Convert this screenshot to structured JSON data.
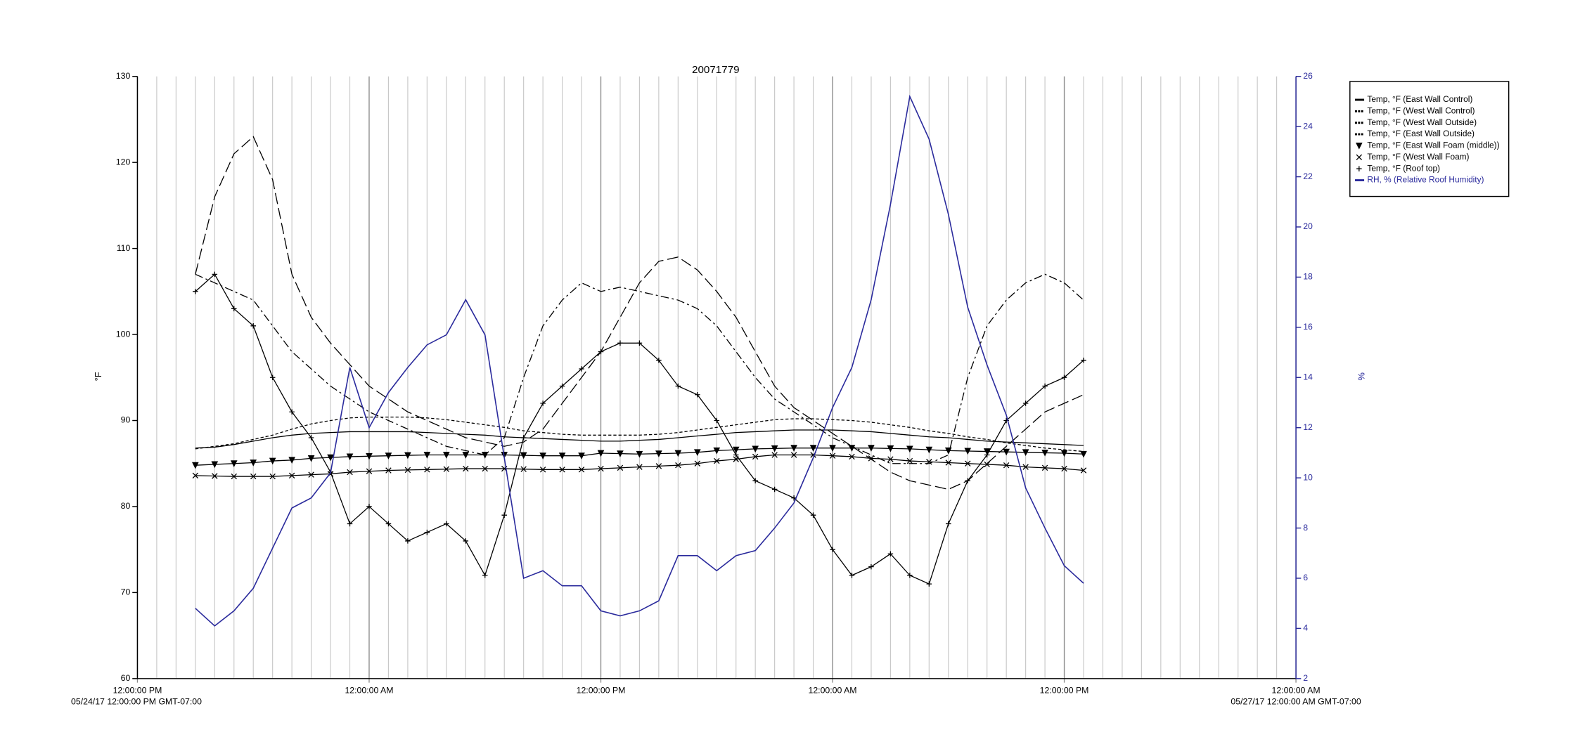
{
  "chart_data": {
    "type": "line",
    "title": "20071779",
    "ylabel": "°F",
    "y2label": "%",
    "x_start_label": "05/24/17 12:00:00 PM GMT-07:00",
    "x_end_label": "05/27/17 12:00:00 AM GMT-07:00",
    "x": [
      3,
      4,
      5,
      6,
      7,
      8,
      9,
      10,
      11,
      12,
      13,
      14,
      15,
      16,
      17,
      18,
      19,
      20,
      21,
      22,
      23,
      24,
      25,
      26,
      27,
      28,
      29,
      30,
      31,
      32,
      33,
      34,
      35,
      36,
      37,
      38,
      39,
      40,
      41,
      42,
      43,
      44,
      45,
      46,
      47,
      48,
      49
    ],
    "xlim": [
      0,
      60
    ],
    "xticks": [
      {
        "value": 0,
        "label": "12:00:00 PM"
      },
      {
        "value": 12,
        "label": "12:00:00 AM"
      },
      {
        "value": 24,
        "label": "12:00:00 PM"
      },
      {
        "value": 36,
        "label": "12:00:00 AM"
      },
      {
        "value": 48,
        "label": "12:00:00 PM"
      },
      {
        "value": 60,
        "label": "12:00:00 AM"
      }
    ],
    "xminorticks": [
      0,
      1,
      2,
      3,
      4,
      5,
      6,
      7,
      8,
      9,
      10,
      11,
      12,
      13,
      14,
      15,
      16,
      17,
      18,
      19,
      20,
      21,
      22,
      23,
      24,
      25,
      26,
      27,
      28,
      29,
      30,
      31,
      32,
      33,
      34,
      35,
      36,
      37,
      38,
      39,
      40,
      41,
      42,
      43,
      44,
      45,
      46,
      47,
      48,
      49,
      50,
      51,
      52,
      53,
      54,
      55,
      56,
      57,
      58,
      59,
      60
    ],
    "ylim": [
      60,
      130
    ],
    "yticks": [
      60,
      70,
      80,
      90,
      100,
      110,
      120,
      130
    ],
    "y2lim": [
      2,
      26
    ],
    "y2ticks": [
      2,
      4,
      6,
      8,
      10,
      12,
      14,
      16,
      18,
      20,
      22,
      24,
      26
    ],
    "grid": true,
    "legend": "top-right",
    "series": [
      {
        "name": "Temp, °F (East Wall Control)",
        "color": "#000000",
        "line_style": "solid",
        "marker": "none",
        "values": [
          86.8,
          86.9,
          87.2,
          87.6,
          88,
          88.3,
          88.5,
          88.6,
          88.7,
          88.7,
          88.7,
          88.7,
          88.6,
          88.5,
          88.4,
          88.3,
          88.1,
          88,
          87.9,
          87.8,
          87.7,
          87.6,
          87.6,
          87.7,
          87.8,
          88,
          88.2,
          88.4,
          88.6,
          88.7,
          88.8,
          88.9,
          88.9,
          88.9,
          88.8,
          88.7,
          88.5,
          88.3,
          88.1,
          88,
          87.8,
          87.6,
          87.5,
          87.4,
          87.3,
          87.2,
          87.1
        ]
      },
      {
        "name": "Temp, °F (West Wall Control)",
        "color": "#000000",
        "line_style": "dashed",
        "marker": "none",
        "values": [
          86.7,
          87,
          87.3,
          87.8,
          88.3,
          89,
          89.6,
          90,
          90.3,
          90.4,
          90.4,
          90.4,
          90.3,
          90.1,
          89.8,
          89.5,
          89.2,
          88.8,
          88.6,
          88.4,
          88.3,
          88.3,
          88.3,
          88.3,
          88.4,
          88.6,
          88.9,
          89.2,
          89.5,
          89.8,
          90.1,
          90.2,
          90.2,
          90.1,
          90,
          89.8,
          89.5,
          89.2,
          88.8,
          88.5,
          88.1,
          87.8,
          87.4,
          87.1,
          86.8,
          86.6,
          86.4
        ]
      },
      {
        "name": "Temp, °F (West Wall Outside)",
        "color": "#000000",
        "line_style": "longdash",
        "marker": "none",
        "values": [
          107,
          116,
          121,
          123,
          118,
          107,
          102,
          99,
          96.5,
          94,
          92.5,
          91,
          90,
          89,
          88,
          87.5,
          87,
          87.5,
          89,
          92,
          95,
          98,
          102,
          106,
          108.5,
          109,
          107.5,
          105,
          102,
          98,
          94,
          91.5,
          90,
          88.5,
          87,
          85.5,
          84,
          83,
          82.5,
          82,
          83,
          85,
          87,
          89,
          91,
          92,
          93
        ]
      },
      {
        "name": "Temp, °F (East Wall Outside)",
        "color": "#000000",
        "line_style": "dashdot",
        "marker": "none",
        "values": [
          107,
          106,
          105,
          104,
          101,
          98,
          96,
          94,
          92.5,
          91,
          90,
          89,
          88,
          87,
          86.5,
          86,
          88,
          95,
          101,
          104,
          106,
          105,
          105.5,
          105,
          104.5,
          104,
          103,
          101,
          98,
          95,
          92.5,
          91,
          89.5,
          88,
          87,
          86,
          85,
          85,
          85,
          86,
          95,
          101,
          104,
          106,
          107,
          106,
          104
        ]
      },
      {
        "name": "Temp, °F (East Wall Foam (middle))",
        "color": "#000000",
        "line_style": "solid",
        "marker": "triangle",
        "values": [
          84.8,
          84.9,
          85,
          85.1,
          85.3,
          85.4,
          85.6,
          85.7,
          85.8,
          85.85,
          85.9,
          85.95,
          86,
          86,
          86,
          86,
          86,
          85.95,
          85.9,
          85.9,
          85.9,
          86.2,
          86.15,
          86.1,
          86.15,
          86.2,
          86.3,
          86.5,
          86.6,
          86.7,
          86.75,
          86.8,
          86.8,
          86.8,
          86.8,
          86.8,
          86.75,
          86.7,
          86.6,
          86.5,
          86.45,
          86.4,
          86.35,
          86.3,
          86.25,
          86.2,
          86.1
        ]
      },
      {
        "name": "Temp, °F (West Wall Foam)",
        "color": "#000000",
        "line_style": "solid",
        "marker": "x",
        "values": [
          83.6,
          83.55,
          83.5,
          83.5,
          83.5,
          83.6,
          83.7,
          83.8,
          84,
          84.1,
          84.2,
          84.25,
          84.3,
          84.35,
          84.4,
          84.4,
          84.4,
          84.35,
          84.3,
          84.3,
          84.3,
          84.4,
          84.5,
          84.6,
          84.7,
          84.8,
          85,
          85.3,
          85.5,
          85.8,
          86,
          86,
          86,
          85.9,
          85.8,
          85.6,
          85.5,
          85.3,
          85.2,
          85.1,
          85,
          84.9,
          84.8,
          84.6,
          84.5,
          84.4,
          84.2
        ]
      },
      {
        "name": "Temp, °F (Roof top)",
        "color": "#000000",
        "line_style": "solid",
        "marker": "plus",
        "values": [
          105,
          107,
          103,
          101,
          95,
          91,
          88,
          84,
          78,
          80,
          78,
          76,
          77,
          78,
          76,
          72,
          79,
          88,
          92,
          94,
          96,
          98,
          99,
          99,
          97,
          94,
          93,
          90,
          86,
          83,
          82,
          81,
          79,
          75,
          72,
          73,
          74.5,
          72,
          71,
          78,
          83,
          86,
          90,
          92,
          94,
          95,
          97
        ]
      },
      {
        "name": "RH, % (Relative Roof Humidity)",
        "color": "#2a2a9c",
        "line_style": "solid",
        "marker": "none",
        "axis": "y2",
        "values": [
          4.8,
          4.1,
          4.7,
          5.6,
          7.2,
          8.8,
          9.2,
          10.2,
          14.4,
          12.0,
          13.4,
          14.4,
          15.3,
          15.7,
          17.1,
          15.7,
          10.8,
          6.0,
          6.3,
          5.7,
          5.7,
          4.7,
          4.5,
          4.7,
          5.1,
          6.9,
          6.9,
          6.3,
          6.9,
          7.1,
          8.0,
          9.0,
          10.8,
          12.8,
          14.4,
          17.1,
          20.9,
          25.2,
          23.5,
          20.5,
          16.8,
          14.5,
          12.5,
          9.6,
          8.0,
          6.5,
          5.8
        ]
      }
    ]
  }
}
